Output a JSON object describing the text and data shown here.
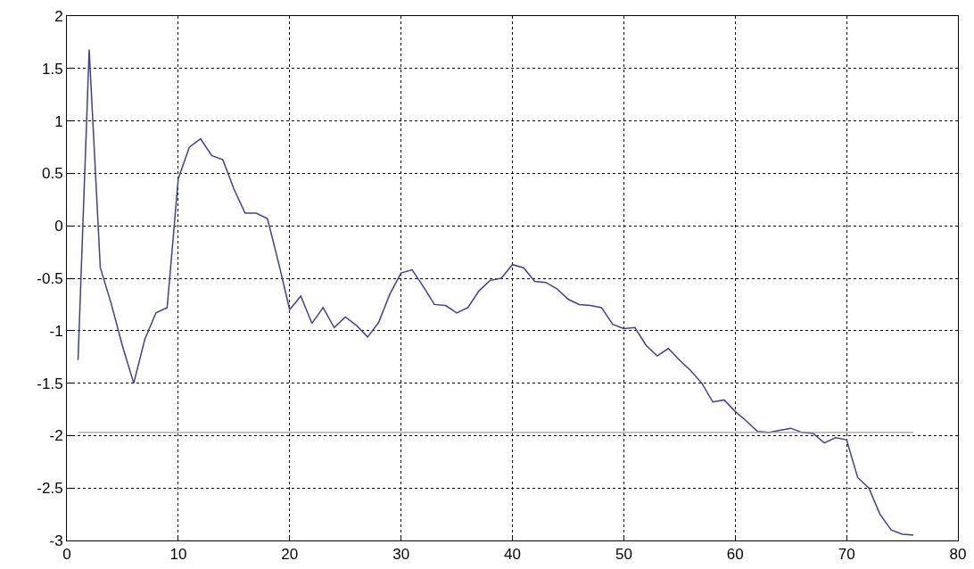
{
  "chart_data": {
    "type": "line",
    "x": [
      1,
      2,
      3,
      4,
      5,
      6,
      7,
      8,
      9,
      10,
      11,
      12,
      13,
      14,
      15,
      16,
      17,
      18,
      19,
      20,
      21,
      22,
      23,
      24,
      25,
      26,
      27,
      28,
      29,
      30,
      31,
      32,
      33,
      34,
      35,
      36,
      37,
      38,
      39,
      40,
      41,
      42,
      43,
      44,
      45,
      46,
      47,
      48,
      49,
      50,
      51,
      52,
      53,
      54,
      55,
      56,
      57,
      58,
      59,
      60,
      61,
      62,
      63,
      64,
      65,
      66,
      67,
      68,
      69,
      70,
      71,
      72,
      73,
      74,
      75,
      76
    ],
    "series": [
      {
        "color": "#3f3f9a",
        "values": [
          -1.28,
          1.68,
          -0.4,
          -0.75,
          -1.15,
          -1.5,
          -1.08,
          -0.83,
          -0.78,
          0.45,
          0.75,
          0.83,
          0.67,
          0.63,
          0.35,
          0.12,
          0.12,
          0.07,
          -0.35,
          -0.8,
          -0.67,
          -0.93,
          -0.78,
          -0.97,
          -0.87,
          -0.95,
          -1.06,
          -0.92,
          -0.65,
          -0.45,
          -0.42,
          -0.58,
          -0.75,
          -0.76,
          -0.83,
          -0.78,
          -0.62,
          -0.52,
          -0.5,
          -0.37,
          -0.4,
          -0.53,
          -0.54,
          -0.6,
          -0.7,
          -0.75,
          -0.76,
          -0.78,
          -0.94,
          -0.98,
          -0.97,
          -1.14,
          -1.24,
          -1.17,
          -1.28,
          -1.38,
          -1.5,
          -1.68,
          -1.66,
          -1.77,
          -1.86,
          -1.96,
          -1.97,
          -1.95,
          -1.93,
          -1.97,
          -1.98,
          -2.07,
          -2.02,
          -2.04,
          -2.4,
          -2.5,
          -2.75,
          -2.9,
          -2.94,
          -2.95
        ]
      }
    ],
    "ref_lines": [
      {
        "axis": "y",
        "value": -1.97,
        "color": "#a0a0a0"
      }
    ],
    "xlim": [
      0,
      80
    ],
    "xticks": [
      0,
      10,
      20,
      30,
      40,
      50,
      60,
      70,
      80
    ],
    "ylim": [
      -3,
      2
    ],
    "yticks": [
      -3,
      -2.5,
      -2,
      -1.5,
      -1,
      -0.5,
      0,
      0.5,
      1,
      1.5,
      2
    ],
    "grid": true,
    "line_style": "solid",
    "marker": "none"
  }
}
